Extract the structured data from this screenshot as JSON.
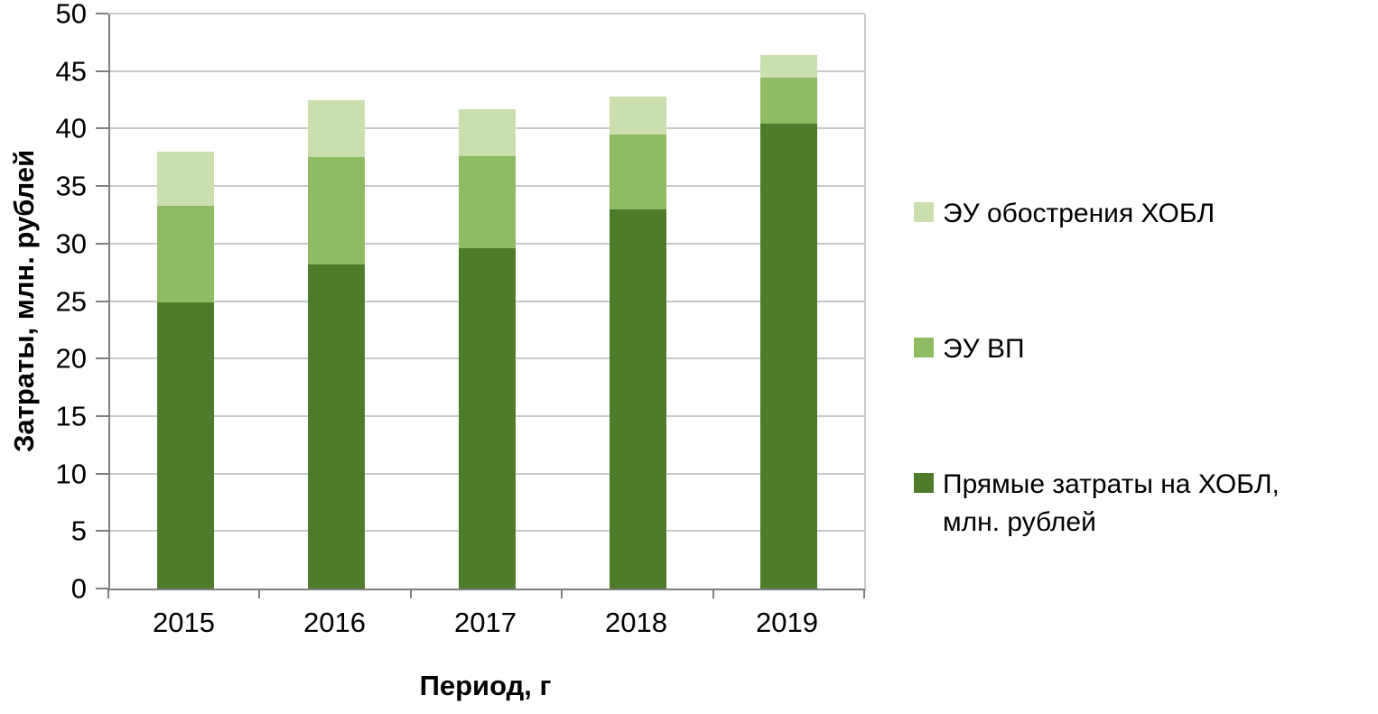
{
  "chart_data": {
    "type": "bar",
    "stacked": true,
    "title": "",
    "xlabel": "Период, г",
    "ylabel": "Затраты, млн. рублей",
    "categories": [
      "2015",
      "2016",
      "2017",
      "2018",
      "2019"
    ],
    "series": [
      {
        "name": "Прямые затраты на ХОБЛ, млн. рублей",
        "color": "#4e7c2a",
        "values": [
          24.9,
          28.2,
          29.6,
          33.0,
          40.4
        ]
      },
      {
        "name": "ЭУ ВП",
        "color": "#8fbb63",
        "values": [
          8.4,
          9.3,
          8.0,
          6.5,
          4.0
        ]
      },
      {
        "name": "ЭУ обострения ХОБЛ",
        "color": "#cbdfae",
        "values": [
          4.7,
          5.0,
          4.1,
          3.3,
          2.0
        ]
      }
    ],
    "stack_totals": [
      38.0,
      42.5,
      41.7,
      42.8,
      46.4
    ],
    "ylim": [
      0,
      50
    ],
    "ytick_step": 5,
    "y_tick_labels": [
      "0",
      "5",
      "10",
      "15",
      "20",
      "25",
      "30",
      "35",
      "40",
      "45",
      "50"
    ],
    "grid": true,
    "legend_position": "right",
    "legend_order": [
      "ЭУ обострения ХОБЛ",
      "ЭУ ВП",
      "Прямые затраты на ХОБЛ, млн. рублей"
    ]
  }
}
